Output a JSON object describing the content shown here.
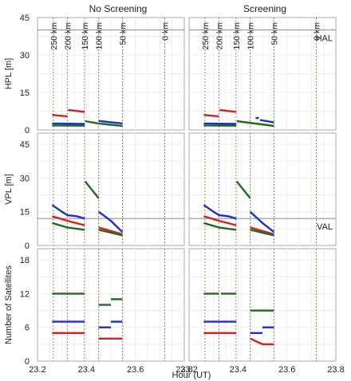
{
  "chart_data": {
    "type": "line",
    "columns": [
      "No Screening",
      "Screening"
    ],
    "xlabel": "Hour (UT)",
    "x_ticks": [
      "23.2",
      "23.4",
      "23.6",
      "23.8"
    ],
    "x_tick_values": [
      23.2,
      23.4,
      23.6,
      23.8
    ],
    "xlim": [
      23.2,
      23.8
    ],
    "grid": true,
    "colors": {
      "red": "#d62020",
      "blue": "#1a2fd0",
      "green": "#1f6b1f",
      "frame": "#aaaaaa",
      "refline": "#888888",
      "distline": "#9a8a50"
    },
    "distance_markers": {
      "labels": [
        "250 km",
        "200 km",
        "150 km",
        "100 km",
        "50 km",
        "0 km"
      ],
      "x": [
        23.265,
        23.322,
        23.392,
        23.45,
        23.547,
        23.72
      ]
    },
    "panels": [
      {
        "ylabel": "HPL [m]",
        "ylim": [
          0,
          45
        ],
        "y_ticks": [
          "0",
          "15",
          "30",
          "45"
        ],
        "y_tick_values": [
          0,
          15,
          30,
          45
        ],
        "ref_line": {
          "label": "HAL",
          "value": 40
        },
        "No Screening": [
          {
            "color": "red",
            "segments": [
              [
                [
                  23.26,
                  6.0
                ],
                [
                  23.322,
                  5.4
                ]
              ],
              [
                [
                  23.325,
                  8.0
                ],
                [
                  23.393,
                  7.2
                ]
              ]
            ]
          },
          {
            "color": "blue",
            "segments": [
              [
                [
                  23.26,
                  2.6
                ],
                [
                  23.393,
                  2.4
                ]
              ],
              [
                [
                  23.45,
                  3.6
                ],
                [
                  23.547,
                  2.6
                ]
              ]
            ]
          },
          {
            "color": "green",
            "segments": [
              [
                [
                  23.26,
                  1.8
                ],
                [
                  23.393,
                  1.7
                ]
              ],
              [
                [
                  23.395,
                  3.5
                ],
                [
                  23.45,
                  2.6
                ]
              ],
              [
                [
                  23.45,
                  2.6
                ],
                [
                  23.547,
                  1.6
                ]
              ]
            ]
          }
        ],
        "Screening": [
          {
            "color": "red",
            "segments": [
              [
                [
                  23.26,
                  6.0
                ],
                [
                  23.322,
                  5.4
                ]
              ],
              [
                [
                  23.325,
                  8.0
                ],
                [
                  23.393,
                  7.2
                ]
              ]
            ]
          },
          {
            "color": "blue",
            "segments": [
              [
                [
                  23.26,
                  2.6
                ],
                [
                  23.393,
                  2.4
                ]
              ],
              [
                [
                  23.472,
                  4.8
                ],
                [
                  23.485,
                  4.8
                ]
              ],
              [
                [
                  23.49,
                  4.0
                ],
                [
                  23.547,
                  3.0
                ]
              ]
            ]
          },
          {
            "color": "green",
            "segments": [
              [
                [
                  23.26,
                  1.8
                ],
                [
                  23.393,
                  1.7
                ]
              ],
              [
                [
                  23.395,
                  3.5
                ],
                [
                  23.547,
                  1.6
                ]
              ]
            ]
          }
        ]
      },
      {
        "ylabel": "VPL [m]",
        "ylim": [
          0,
          50
        ],
        "y_ticks": [
          "0",
          "15",
          "30",
          "45"
        ],
        "y_tick_values": [
          0,
          15,
          30,
          45
        ],
        "ref_line": {
          "label": "VAL",
          "value": 12
        },
        "No Screening": [
          {
            "color": "blue",
            "segments": [
              [
                [
                  23.26,
                  18
                ],
                [
                  23.3,
                  15
                ],
                [
                  23.322,
                  13.5
                ],
                [
                  23.36,
                  13
                ],
                [
                  23.393,
                  12
                ]
              ],
              [
                [
                  23.45,
                  15
                ],
                [
                  23.5,
                  11
                ],
                [
                  23.547,
                  6
                ]
              ]
            ]
          },
          {
            "color": "red",
            "segments": [
              [
                [
                  23.26,
                  13
                ],
                [
                  23.322,
                  11
                ],
                [
                  23.393,
                  9
                ]
              ],
              [
                [
                  23.45,
                  8
                ],
                [
                  23.547,
                  5
                ]
              ]
            ]
          },
          {
            "color": "green",
            "segments": [
              [
                [
                  23.26,
                  10
                ],
                [
                  23.322,
                  8
                ],
                [
                  23.393,
                  7
                ]
              ],
              [
                [
                  23.395,
                  28.5
                ],
                [
                  23.45,
                  21
                ]
              ],
              [
                [
                  23.45,
                  7
                ],
                [
                  23.547,
                  4.5
                ]
              ]
            ]
          }
        ],
        "Screening": [
          {
            "color": "blue",
            "segments": [
              [
                [
                  23.26,
                  18
                ],
                [
                  23.3,
                  15
                ],
                [
                  23.322,
                  13.5
                ],
                [
                  23.36,
                  13
                ],
                [
                  23.393,
                  12
                ]
              ],
              [
                [
                  23.45,
                  15
                ],
                [
                  23.5,
                  10
                ],
                [
                  23.547,
                  6
                ]
              ]
            ]
          },
          {
            "color": "red",
            "segments": [
              [
                [
                  23.26,
                  13
                ],
                [
                  23.322,
                  11
                ],
                [
                  23.393,
                  9
                ]
              ],
              [
                [
                  23.45,
                  8
                ],
                [
                  23.547,
                  5
                ]
              ]
            ]
          },
          {
            "color": "green",
            "segments": [
              [
                [
                  23.26,
                  10
                ],
                [
                  23.322,
                  8
                ],
                [
                  23.393,
                  7
                ]
              ],
              [
                [
                  23.395,
                  28.5
                ],
                [
                  23.45,
                  21
                ]
              ],
              [
                [
                  23.45,
                  7
                ],
                [
                  23.547,
                  4.5
                ]
              ]
            ]
          }
        ]
      },
      {
        "ylabel": "Number of Satellites",
        "ylim": [
          0,
          20
        ],
        "y_ticks": [
          "0",
          "6",
          "12",
          "18"
        ],
        "y_tick_values": [
          0,
          6,
          12,
          18
        ],
        "No Screening": [
          {
            "color": "green",
            "segments": [
              [
                [
                  23.26,
                  12
                ],
                [
                  23.393,
                  12
                ]
              ],
              [
                [
                  23.45,
                  10
                ],
                [
                  23.5,
                  10
                ]
              ],
              [
                [
                  23.5,
                  11
                ],
                [
                  23.547,
                  11
                ]
              ]
            ]
          },
          {
            "color": "blue",
            "segments": [
              [
                [
                  23.26,
                  7
                ],
                [
                  23.393,
                  7
                ]
              ],
              [
                [
                  23.45,
                  6
                ],
                [
                  23.5,
                  6
                ]
              ],
              [
                [
                  23.5,
                  7
                ],
                [
                  23.547,
                  7
                ]
              ]
            ]
          },
          {
            "color": "red",
            "segments": [
              [
                [
                  23.26,
                  5
                ],
                [
                  23.393,
                  5
                ]
              ],
              [
                [
                  23.45,
                  4
                ],
                [
                  23.547,
                  4
                ]
              ]
            ]
          }
        ],
        "Screening": [
          {
            "color": "green",
            "segments": [
              [
                [
                  23.26,
                  12
                ],
                [
                  23.322,
                  12
                ]
              ],
              [
                [
                  23.33,
                  12
                ],
                [
                  23.393,
                  12
                ]
              ],
              [
                [
                  23.45,
                  9
                ],
                [
                  23.5,
                  9
                ]
              ],
              [
                [
                  23.5,
                  9
                ],
                [
                  23.547,
                  9
                ]
              ]
            ]
          },
          {
            "color": "blue",
            "segments": [
              [
                [
                  23.26,
                  7
                ],
                [
                  23.393,
                  7
                ]
              ],
              [
                [
                  23.45,
                  5
                ],
                [
                  23.5,
                  5
                ]
              ],
              [
                [
                  23.5,
                  6
                ],
                [
                  23.547,
                  6
                ]
              ]
            ]
          },
          {
            "color": "red",
            "segments": [
              [
                [
                  23.26,
                  5
                ],
                [
                  23.393,
                  5
                ]
              ],
              [
                [
                  23.45,
                  4
                ],
                [
                  23.5,
                  3
                ]
              ],
              [
                [
                  23.5,
                  3
                ],
                [
                  23.547,
                  3
                ]
              ]
            ]
          }
        ]
      }
    ]
  }
}
